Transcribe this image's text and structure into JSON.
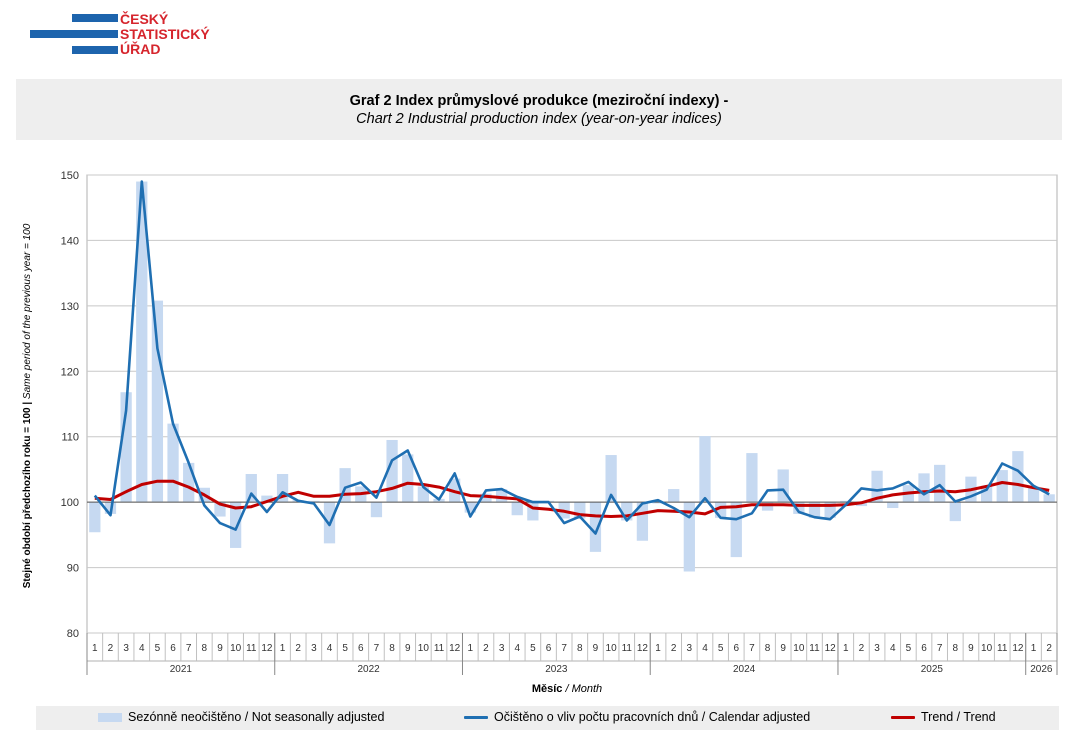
{
  "logo": {
    "lines": [
      "ČESKÝ",
      "STATISTICKÝ",
      "ÚŘAD"
    ]
  },
  "title": {
    "cz": "Graf 2 Index průmyslové produkce (meziroční indexy) -",
    "en": "Chart 2 Industrial production index (year-on-year indices)"
  },
  "legend": {
    "bars": "Sezónně neočištěno / Not seasonally adjusted",
    "blue": "Očištěno o vliv počtu pracovních dnů / Calendar adjusted",
    "red": "Trend / Trend"
  },
  "colors": {
    "bars": "#c6d9f1",
    "blue": "#1f6fb2",
    "red": "#c00000",
    "grid": "#c8c8c8"
  },
  "chart_data": {
    "type": "bar+line",
    "ylabel_cz": "Stejné období předchozího roku = 100 | ",
    "ylabel_en": "Same period of the previous year = 100",
    "xlabel_cz": "Měsíc",
    "xlabel_en": " / Month",
    "ylim": [
      80,
      150
    ],
    "yticks": [
      80,
      90,
      100,
      110,
      120,
      130,
      140,
      150
    ],
    "baseline": 100,
    "grid": true,
    "years": [
      {
        "label": "2021",
        "months": 12
      },
      {
        "label": "2022",
        "months": 12
      },
      {
        "label": "2023",
        "months": 12
      },
      {
        "label": "2024",
        "months": 12
      },
      {
        "label": "2025",
        "months": 12
      },
      {
        "label": "2026",
        "months": 2
      }
    ],
    "series": [
      {
        "name": "Sezónně neočištěno / Not seasonally adjusted",
        "type": "bar",
        "values": [
          95.4,
          98.2,
          116.8,
          149.0,
          130.8,
          112.0,
          106.0,
          102.2,
          97.8,
          93.0,
          104.3,
          101.0,
          104.3,
          100.3,
          100.2,
          93.7,
          105.2,
          102.4,
          97.7,
          109.5,
          107.3,
          102.4,
          100.5,
          103.6,
          98.4,
          101.3,
          102.0,
          98.0,
          97.2,
          100.2,
          97.5,
          97.5,
          92.4,
          107.2,
          97.2,
          94.1,
          99.8,
          102.0,
          89.4,
          110.1,
          97.6,
          91.6,
          107.5,
          98.7,
          105.0,
          98.2,
          97.6,
          97.6,
          100.2,
          99.4,
          104.8,
          99.1,
          102.6,
          104.4,
          105.7,
          97.1,
          103.9,
          102.5,
          104.9,
          107.8,
          102.4,
          101.2
        ]
      },
      {
        "name": "Očištěno o vliv počtu pracovních dnů / Calendar adjusted",
        "type": "line",
        "values": [
          101.0,
          98.0,
          114.0,
          149.0,
          123.5,
          112.0,
          106.0,
          99.5,
          96.8,
          95.8,
          101.3,
          98.5,
          101.5,
          100.2,
          99.8,
          96.5,
          102.2,
          103.0,
          100.7,
          106.4,
          107.9,
          102.3,
          100.4,
          104.4,
          97.8,
          101.8,
          102.0,
          100.8,
          100.0,
          100.0,
          96.8,
          97.8,
          95.2,
          101.1,
          97.2,
          99.8,
          100.3,
          99.1,
          97.7,
          100.6,
          97.6,
          97.4,
          98.3,
          101.8,
          101.9,
          98.5,
          97.7,
          97.4,
          99.6,
          102.1,
          101.8,
          102.1,
          103.1,
          101.2,
          102.6,
          100.1,
          100.9,
          101.9,
          105.9,
          104.8,
          102.5,
          101.2
        ]
      },
      {
        "name": "Trend / Trend",
        "type": "line",
        "values": [
          100.6,
          100.4,
          101.6,
          102.7,
          103.2,
          103.2,
          102.3,
          101.1,
          99.7,
          99.1,
          99.3,
          100.1,
          100.9,
          101.5,
          100.9,
          100.9,
          101.2,
          101.3,
          101.6,
          102.1,
          102.9,
          102.7,
          102.3,
          101.6,
          101.0,
          100.9,
          100.7,
          100.5,
          99.1,
          98.9,
          98.6,
          98.1,
          97.9,
          97.8,
          97.9,
          98.3,
          98.7,
          98.6,
          98.5,
          98.2,
          99.2,
          99.3,
          99.6,
          99.6,
          99.6,
          99.5,
          99.5,
          99.5,
          99.6,
          99.9,
          100.6,
          101.1,
          101.4,
          101.6,
          101.7,
          101.6,
          101.9,
          102.4,
          103.0,
          102.7,
          102.2,
          101.8
        ]
      }
    ]
  }
}
